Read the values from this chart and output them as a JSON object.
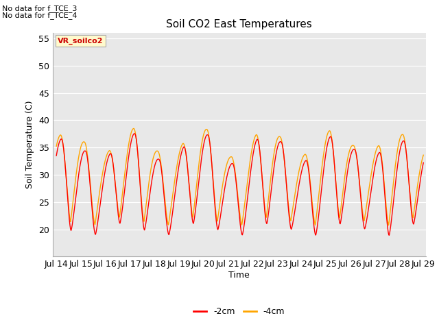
{
  "title": "Soil CO2 East Temperatures",
  "xlabel": "Time",
  "ylabel": "Soil Temperature (C)",
  "ylim": [
    15,
    56
  ],
  "yticks": [
    20,
    25,
    30,
    35,
    40,
    45,
    50,
    55
  ],
  "line_2cm_color": "#FF0000",
  "line_4cm_color": "#FFA500",
  "legend_labels": [
    "-2cm",
    "-4cm"
  ],
  "annotation_box_text": "VR_soilco2",
  "annotation_box_color": "#FFFACD",
  "annotation_box_text_color": "#CC0000",
  "no_data_text": [
    "No data for f_TCE_3",
    "No data for f_TCE_4"
  ],
  "background_color": "#E8E8E8",
  "x_start_day": 14,
  "x_end_day": 29,
  "xtick_days": [
    14,
    15,
    16,
    17,
    18,
    19,
    20,
    21,
    22,
    23,
    24,
    25,
    26,
    27,
    28,
    29
  ],
  "xtick_labels": [
    "Jul 14",
    "Jul 15",
    "Jul 16",
    "Jul 17",
    "Jul 18",
    "Jul 19",
    "Jul 20",
    "Jul 21",
    "Jul 22",
    "Jul 23",
    "Jul 24",
    "Jul 25",
    "Jul 26",
    "Jul 27",
    "Jul 28",
    "Jul 29"
  ]
}
